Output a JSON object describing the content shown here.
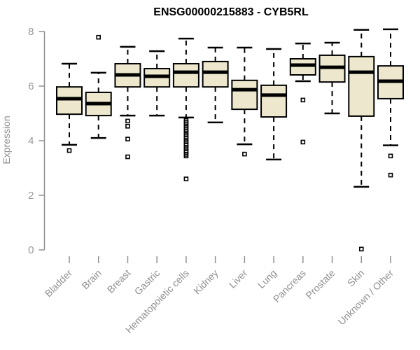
{
  "header": {
    "title": "ENSG00000215883 - CYB5RL"
  },
  "colors": {
    "background": "#ffffff",
    "box_fill": "#EDE8CD",
    "box_stroke": "#000000",
    "median_color": "#000000",
    "axis_color": "#909090",
    "tick_label_color": "#999999",
    "title_color": "#000000"
  },
  "chart_data": {
    "type": "boxplot",
    "title": "ENSG00000215883 - CYB5RL",
    "xlabel": "",
    "ylabel": "Expression",
    "ylim": [
      0,
      8
    ],
    "yticks": [
      0,
      2,
      4,
      6,
      8
    ],
    "grid": false,
    "legend": false,
    "box_fill": "#EDE8CD",
    "box_stroke": "#000000",
    "axis_color": "#909090",
    "categories": [
      "Bladder",
      "Brain",
      "Breast",
      "Gastric",
      "Hematopoietic cells",
      "Kidney",
      "Liver",
      "Lung",
      "Pancreas",
      "Prostate",
      "Skin",
      "Unknown / Other"
    ],
    "series": [
      {
        "name": "Bladder",
        "whisker_low": 3.85,
        "q1": 4.97,
        "median": 5.54,
        "q3": 5.97,
        "whisker_high": 6.82,
        "outliers": [
          3.64
        ]
      },
      {
        "name": "Brain",
        "whisker_low": 4.1,
        "q1": 4.92,
        "median": 5.36,
        "q3": 5.77,
        "whisker_high": 6.49,
        "outliers": [
          7.79
        ]
      },
      {
        "name": "Breast",
        "whisker_low": 4.92,
        "q1": 5.97,
        "median": 6.41,
        "q3": 6.82,
        "whisker_high": 7.44,
        "outliers": [
          4.72,
          4.53,
          4.06,
          3.41
        ]
      },
      {
        "name": "Gastric",
        "whisker_low": 4.92,
        "q1": 5.97,
        "median": 6.36,
        "q3": 6.64,
        "whisker_high": 7.28,
        "outliers": []
      },
      {
        "name": "Hematopoietic cells",
        "whisker_low": 4.85,
        "q1": 5.97,
        "median": 6.51,
        "q3": 6.82,
        "whisker_high": 7.74,
        "outliers": [
          4.74,
          4.67,
          4.61,
          4.54,
          4.48,
          4.41,
          4.35,
          4.28,
          4.22,
          4.15,
          4.09,
          4.02,
          3.96,
          3.89,
          3.83,
          3.76,
          3.7,
          3.63,
          3.57,
          3.5,
          3.44,
          2.6
        ]
      },
      {
        "name": "Kidney",
        "whisker_low": 4.67,
        "q1": 5.97,
        "median": 6.51,
        "q3": 6.9,
        "whisker_high": 7.41,
        "outliers": []
      },
      {
        "name": "Liver",
        "whisker_low": 3.87,
        "q1": 5.15,
        "median": 5.87,
        "q3": 6.21,
        "whisker_high": 7.41,
        "outliers": [
          3.51
        ]
      },
      {
        "name": "Lung",
        "whisker_low": 3.31,
        "q1": 4.87,
        "median": 5.67,
        "q3": 6.03,
        "whisker_high": 7.36,
        "outliers": []
      },
      {
        "name": "Pancreas",
        "whisker_low": 6.18,
        "q1": 6.41,
        "median": 6.77,
        "q3": 7.0,
        "whisker_high": 7.56,
        "outliers": [
          5.49,
          3.95
        ]
      },
      {
        "name": "Prostate",
        "whisker_low": 5.0,
        "q1": 6.15,
        "median": 6.69,
        "q3": 7.13,
        "whisker_high": 7.59,
        "outliers": []
      },
      {
        "name": "Skin",
        "whisker_low": 2.31,
        "q1": 4.9,
        "median": 6.51,
        "q3": 7.08,
        "whisker_high": 8.06,
        "outliers": [
          0.03
        ]
      },
      {
        "name": "Unknown / Other",
        "whisker_low": 3.83,
        "q1": 5.54,
        "median": 6.18,
        "q3": 6.74,
        "whisker_high": 8.08,
        "outliers": [
          3.44,
          2.74
        ]
      }
    ]
  }
}
